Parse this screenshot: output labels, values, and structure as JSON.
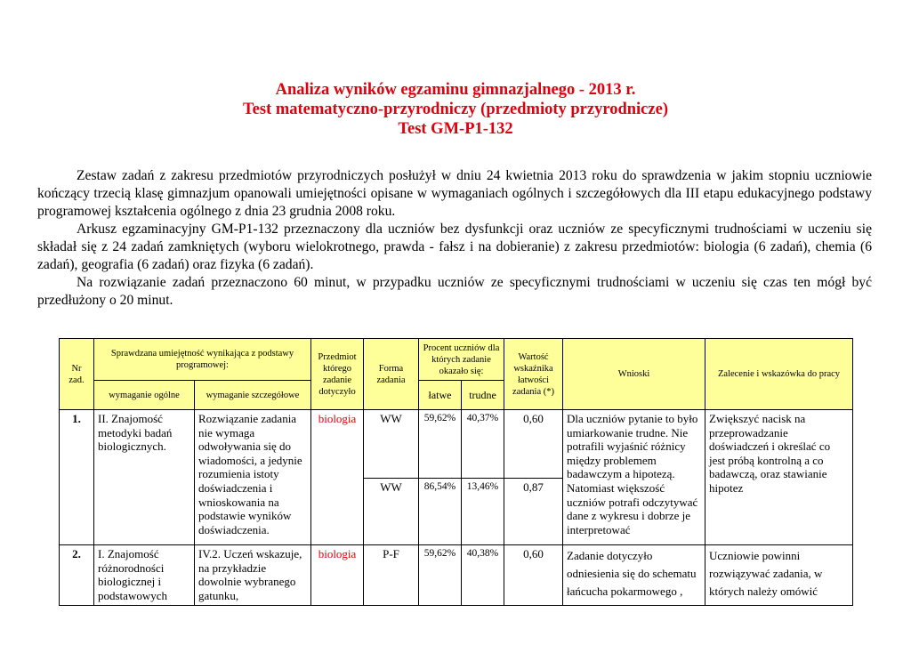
{
  "title": {
    "line1": "Analiza wyników egzaminu gimnazjalnego - 2013 r.",
    "line2": "Test matematyczno-przyrodniczy (przedmioty przyrodnicze)",
    "line3": "Test GM-P1-132"
  },
  "intro": [
    "Zestaw zadań z zakresu przedmiotów przyrodniczych posłużył w dniu 24 kwietnia 2013 roku do sprawdzenia w jakim stopniu uczniowie kończący trzecią klasę gimnazjum opanowali umiejętności opisane w wymaganiach ogólnych i szczegółowych dla III etapu edukacyjnego podstawy programowej kształcenia ogólnego z dnia 23 grudnia 2008 roku.",
    "Arkusz egzaminacyjny GM-P1-132 przeznaczony dla uczniów bez dysfunkcji oraz uczniów ze specyficznymi trudnościami w uczeniu się składał się z 24 zadań zamkniętych (wyboru wielokrotnego, prawda - fałsz i na dobieranie) z zakresu przedmiotów: biologia (6 zadań), chemia (6 zadań), geografia (6 zadań) oraz fizyka (6 zadań).",
    "Na rozwiązanie zadań przeznaczono 60 minut, w przypadku uczniów ze specyficznymi trudnościami w uczeniu się czas ten mógł być przedłużony o 20 minut."
  ],
  "table": {
    "headers": {
      "nr": "Nr zad.",
      "skill": "Sprawdzana umiejętność wynikająca z podstawy programowej:",
      "general": "wymaganie ogólne",
      "detailed": "wymaganie szczegółowe",
      "subject": "Przedmiot którego zadanie dotyczyło",
      "form": "Forma zadania",
      "percent": "Procent uczniów dla których zadanie okazało się:",
      "easy": "łatwe",
      "hard": "trudne",
      "index": "Wartość wskaźnika łatwości zadania (*)",
      "conclusions": "Wnioski",
      "recommendation": "Zalecenie i wskazówka do pracy"
    },
    "rows": [
      {
        "nr": "1.",
        "general": "II. Znajomość metodyki badań biologicznych.",
        "detailed": "Rozwiązanie zadania nie wymaga odwoływania się do wiadomości, a jedynie rozumienia istoty doświadczenia i wnioskowania na podstawie wyników doświadczenia.",
        "subject": "biologia",
        "parts": [
          {
            "form": "WW",
            "easy": "59,62%",
            "hard": "40,37%",
            "index": "0,60"
          },
          {
            "form": "WW",
            "easy": "86,54%",
            "hard": "13,46%",
            "index": "0,87"
          }
        ],
        "conclusions": "Dla uczniów pytanie to było umiarkowanie trudne. Nie potrafili wyjaśnić różnicy między problemem badawczym a hipotezą. Natomiast większość uczniów potrafi odczytywać dane z wykresu i dobrze je interpretować",
        "recommendation": "Zwiększyć nacisk na przeprowadzanie doświadczeń i określać co jest próbą kontrolną a co badawczą, oraz stawianie hipotez"
      },
      {
        "nr": "2.",
        "general": "I. Znajomość różnorodności biologicznej i podstawowych",
        "detailed": "IV.2. Uczeń wskazuje, na przykładzie dowolnie wybranego gatunku,",
        "subject": "biologia",
        "form": "P-F",
        "easy": "59,62%",
        "hard": "40,38%",
        "index": "0,60",
        "conclusions": "Zadanie dotyczyło odniesienia się do schematu łańcucha pokarmowego ,",
        "recommendation": "Uczniowie powinni rozwiązywać zadania, w których należy omówić"
      }
    ]
  },
  "colors": {
    "title": "#e0000f",
    "header_bg": "#ffff99",
    "subject": "#e0000f"
  }
}
